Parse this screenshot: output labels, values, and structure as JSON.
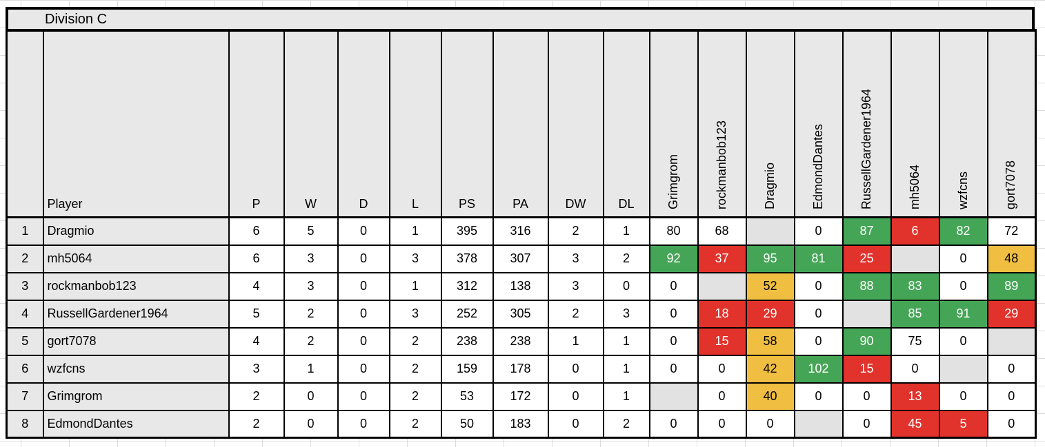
{
  "title": "Division C",
  "colors": {
    "green": "#45a556",
    "red": "#e1322b",
    "yellow": "#f0be41",
    "diagonal": "#e2e2e2",
    "header_bg": "#e8e8e8",
    "border": "#000000"
  },
  "table": {
    "corner_label": "",
    "stat_headers": [
      "Player",
      "P",
      "W",
      "D",
      "L",
      "PS",
      "PA",
      "DW",
      "DL"
    ],
    "opponent_headers": [
      "Grimgrom",
      "rockmanbob123",
      "Dragmio",
      "EdmondDantes",
      "RussellGardener1964",
      "mh5064",
      "wzfcns",
      "gort7078"
    ],
    "rows": [
      {
        "rank": "1",
        "player": "Dragmio",
        "stats": [
          "6",
          "5",
          "0",
          "1",
          "395",
          "316",
          "2",
          "1"
        ],
        "results": [
          {
            "value": "80",
            "state": "plain"
          },
          {
            "value": "68",
            "state": "plain"
          },
          {
            "value": "",
            "state": "diagonal"
          },
          {
            "value": "0",
            "state": "plain"
          },
          {
            "value": "87",
            "state": "green"
          },
          {
            "value": "6",
            "state": "red"
          },
          {
            "value": "82",
            "state": "green"
          },
          {
            "value": "72",
            "state": "plain"
          }
        ]
      },
      {
        "rank": "2",
        "player": "mh5064",
        "stats": [
          "6",
          "3",
          "0",
          "3",
          "378",
          "307",
          "3",
          "2"
        ],
        "results": [
          {
            "value": "92",
            "state": "green"
          },
          {
            "value": "37",
            "state": "red"
          },
          {
            "value": "95",
            "state": "green"
          },
          {
            "value": "81",
            "state": "green"
          },
          {
            "value": "25",
            "state": "red"
          },
          {
            "value": "",
            "state": "diagonal"
          },
          {
            "value": "0",
            "state": "plain"
          },
          {
            "value": "48",
            "state": "yellow"
          }
        ]
      },
      {
        "rank": "3",
        "player": "rockmanbob123",
        "stats": [
          "4",
          "3",
          "0",
          "1",
          "312",
          "138",
          "3",
          "0"
        ],
        "results": [
          {
            "value": "0",
            "state": "plain"
          },
          {
            "value": "",
            "state": "diagonal"
          },
          {
            "value": "52",
            "state": "yellow"
          },
          {
            "value": "0",
            "state": "plain"
          },
          {
            "value": "88",
            "state": "green"
          },
          {
            "value": "83",
            "state": "green"
          },
          {
            "value": "0",
            "state": "plain"
          },
          {
            "value": "89",
            "state": "green"
          }
        ]
      },
      {
        "rank": "4",
        "player": "RussellGardener1964",
        "stats": [
          "5",
          "2",
          "0",
          "3",
          "252",
          "305",
          "2",
          "3"
        ],
        "results": [
          {
            "value": "0",
            "state": "plain"
          },
          {
            "value": "18",
            "state": "red"
          },
          {
            "value": "29",
            "state": "red"
          },
          {
            "value": "0",
            "state": "plain"
          },
          {
            "value": "",
            "state": "diagonal"
          },
          {
            "value": "85",
            "state": "green"
          },
          {
            "value": "91",
            "state": "green"
          },
          {
            "value": "29",
            "state": "red"
          }
        ]
      },
      {
        "rank": "5",
        "player": "gort7078",
        "stats": [
          "4",
          "2",
          "0",
          "2",
          "238",
          "238",
          "1",
          "1"
        ],
        "results": [
          {
            "value": "0",
            "state": "plain"
          },
          {
            "value": "15",
            "state": "red"
          },
          {
            "value": "58",
            "state": "yellow"
          },
          {
            "value": "0",
            "state": "plain"
          },
          {
            "value": "90",
            "state": "green"
          },
          {
            "value": "75",
            "state": "plain"
          },
          {
            "value": "0",
            "state": "plain"
          },
          {
            "value": "",
            "state": "diagonal"
          }
        ]
      },
      {
        "rank": "6",
        "player": "wzfcns",
        "stats": [
          "3",
          "1",
          "0",
          "2",
          "159",
          "178",
          "0",
          "1"
        ],
        "results": [
          {
            "value": "0",
            "state": "plain"
          },
          {
            "value": "0",
            "state": "plain"
          },
          {
            "value": "42",
            "state": "yellow"
          },
          {
            "value": "102",
            "state": "green"
          },
          {
            "value": "15",
            "state": "red"
          },
          {
            "value": "0",
            "state": "plain"
          },
          {
            "value": "",
            "state": "diagonal"
          },
          {
            "value": "0",
            "state": "plain"
          }
        ]
      },
      {
        "rank": "7",
        "player": "Grimgrom",
        "stats": [
          "2",
          "0",
          "0",
          "2",
          "53",
          "172",
          "0",
          "1"
        ],
        "results": [
          {
            "value": "",
            "state": "diagonal"
          },
          {
            "value": "0",
            "state": "plain"
          },
          {
            "value": "40",
            "state": "yellow"
          },
          {
            "value": "0",
            "state": "plain"
          },
          {
            "value": "0",
            "state": "plain"
          },
          {
            "value": "13",
            "state": "red"
          },
          {
            "value": "0",
            "state": "plain"
          },
          {
            "value": "0",
            "state": "plain"
          }
        ]
      },
      {
        "rank": "8",
        "player": "EdmondDantes",
        "stats": [
          "2",
          "0",
          "0",
          "2",
          "50",
          "183",
          "0",
          "2"
        ],
        "results": [
          {
            "value": "0",
            "state": "plain"
          },
          {
            "value": "0",
            "state": "plain"
          },
          {
            "value": "0",
            "state": "plain"
          },
          {
            "value": "",
            "state": "diagonal"
          },
          {
            "value": "0",
            "state": "plain"
          },
          {
            "value": "45",
            "state": "red"
          },
          {
            "value": "5",
            "state": "red"
          },
          {
            "value": "0",
            "state": "plain"
          }
        ]
      }
    ]
  }
}
